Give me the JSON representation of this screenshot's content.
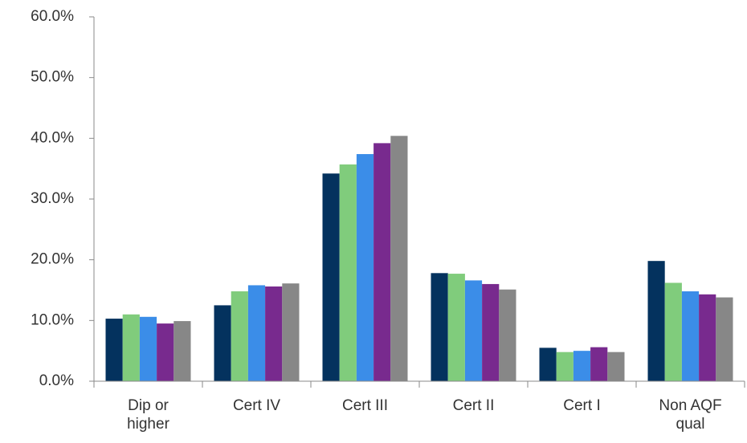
{
  "chart_data": {
    "type": "bar",
    "categories": [
      "Dip or higher",
      "Cert IV",
      "Cert III",
      "Cert II",
      "Cert I",
      "Non AQF qual"
    ],
    "series": [
      {
        "color": "#04325e",
        "values": [
          10.3,
          12.5,
          34.2,
          17.8,
          5.5,
          19.8
        ]
      },
      {
        "color": "#80cc7c",
        "values": [
          11.0,
          14.8,
          35.7,
          17.7,
          4.8,
          16.2
        ]
      },
      {
        "color": "#3b8de8",
        "values": [
          10.6,
          15.8,
          37.4,
          16.6,
          5.0,
          14.8
        ]
      },
      {
        "color": "#782a8e",
        "values": [
          9.5,
          15.6,
          39.2,
          16.0,
          5.6,
          14.3
        ]
      },
      {
        "color": "#878787",
        "values": [
          9.9,
          16.1,
          40.4,
          15.1,
          4.8,
          13.8
        ]
      }
    ],
    "ylim": [
      0,
      60
    ],
    "yticks": [
      {
        "value": 0,
        "label": "0.0%"
      },
      {
        "value": 10,
        "label": "10.0%"
      },
      {
        "value": 20,
        "label": "20.0%"
      },
      {
        "value": 30,
        "label": "30.0%"
      },
      {
        "value": 40,
        "label": "40.0%"
      },
      {
        "value": 50,
        "label": "50.0%"
      },
      {
        "value": 60,
        "label": "60.0%"
      }
    ],
    "grid": false
  }
}
